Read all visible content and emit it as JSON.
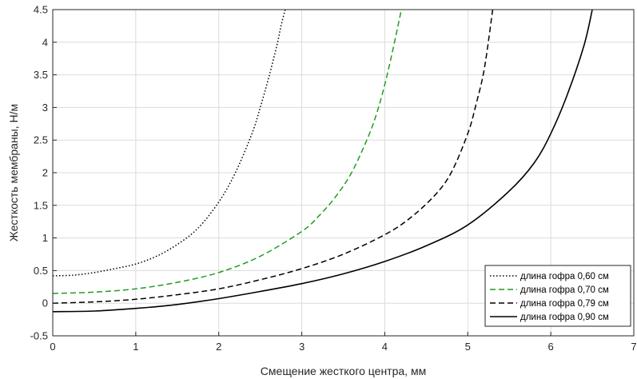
{
  "chart_data": {
    "type": "line",
    "title": "",
    "xlabel": "Смещение жесткого центра, мм",
    "ylabel": "Жесткость мембраны, Н/м",
    "xlim": [
      0,
      7
    ],
    "ylim": [
      -0.5,
      4.5
    ],
    "xticks": [
      "0",
      "1",
      "2",
      "3",
      "4",
      "5",
      "6",
      "7"
    ],
    "yticks": [
      "-0.5",
      "0",
      "0.5",
      "1",
      "1.5",
      "2",
      "2.5",
      "3",
      "3.5",
      "4",
      "4.5"
    ],
    "grid": true,
    "legend_position": "bottom-right",
    "series": [
      {
        "name": "длина гофра 0,60 см",
        "color": "#000000",
        "style": "dotted",
        "x": [
          0,
          0.25,
          0.5,
          0.75,
          1.0,
          1.25,
          1.5,
          1.75,
          2.0,
          2.2,
          2.4,
          2.5,
          2.6,
          2.7,
          2.75,
          2.8
        ],
        "y": [
          0.42,
          0.43,
          0.47,
          0.53,
          0.6,
          0.72,
          0.9,
          1.15,
          1.55,
          2.0,
          2.6,
          3.0,
          3.45,
          3.95,
          4.25,
          4.5
        ]
      },
      {
        "name": "длина гофра 0,70 см",
        "color": "#1f9e1f",
        "style": "dashed",
        "x": [
          0,
          0.5,
          1.0,
          1.5,
          2.0,
          2.5,
          3.0,
          3.2,
          3.4,
          3.6,
          3.8,
          3.9,
          4.0,
          4.1,
          4.2
        ],
        "y": [
          0.15,
          0.17,
          0.22,
          0.32,
          0.47,
          0.72,
          1.1,
          1.33,
          1.62,
          2.0,
          2.55,
          2.9,
          3.35,
          3.9,
          4.5
        ]
      },
      {
        "name": "длина гофра 0,79 см",
        "color": "#000000",
        "style": "dashed",
        "x": [
          0,
          0.5,
          1.0,
          1.5,
          2.0,
          2.5,
          3.0,
          3.5,
          4.0,
          4.3,
          4.6,
          4.8,
          5.0,
          5.1,
          5.2,
          5.3
        ],
        "y": [
          0.0,
          0.02,
          0.06,
          0.13,
          0.22,
          0.36,
          0.53,
          0.75,
          1.05,
          1.3,
          1.65,
          2.0,
          2.6,
          3.05,
          3.6,
          4.5
        ]
      },
      {
        "name": "длина гофра 0,90 см",
        "color": "#000000",
        "style": "solid",
        "x": [
          0,
          0.5,
          1.0,
          1.5,
          2.0,
          2.5,
          3.0,
          3.5,
          4.0,
          4.5,
          5.0,
          5.5,
          5.8,
          6.0,
          6.2,
          6.4,
          6.5
        ],
        "y": [
          -0.13,
          -0.12,
          -0.08,
          -0.02,
          0.07,
          0.18,
          0.3,
          0.45,
          0.64,
          0.88,
          1.2,
          1.72,
          2.15,
          2.6,
          3.2,
          3.95,
          4.5
        ]
      }
    ]
  }
}
